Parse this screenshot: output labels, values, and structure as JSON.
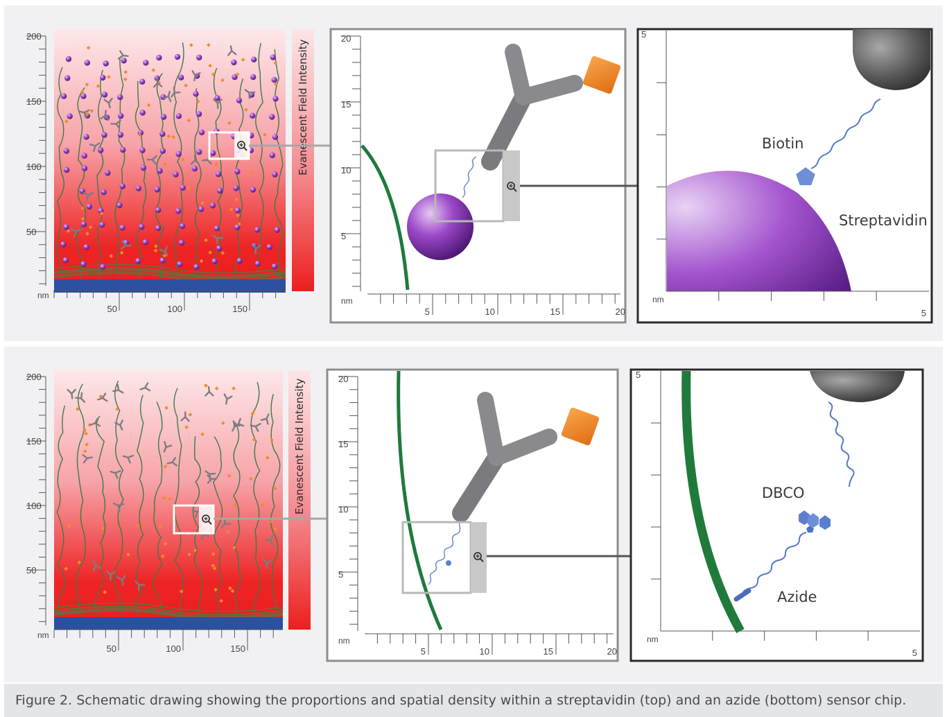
{
  "caption": "Figure 2. Schematic drawing showing the proportions and spatial density within a streptavidin (top) and an azide (bottom) sensor chip.",
  "unit": "nm",
  "intensity_label": "Evanescent Field Intensity",
  "panel_a_y_ticks": [
    "200",
    "150",
    "100",
    "50"
  ],
  "panel_a_x_ticks": [
    "50",
    "100",
    "150"
  ],
  "panel_b_y_ticks": [
    "20",
    "15",
    "10",
    "5"
  ],
  "panel_b_x_ticks": [
    "5",
    "10",
    "15",
    "20"
  ],
  "panel_c_y_tick": "5",
  "panel_c_x_tick": "5",
  "top_labels": {
    "biotin": "Biotin",
    "streptavidin": "Streptavidin"
  },
  "bottom_labels": {
    "dbco": "DBCO",
    "azide": "Azide"
  },
  "colors": {
    "substrate": "#2d4fa0",
    "field_top": "#fde8ea",
    "field_bottom": "#ee2424",
    "polymer": "#2f7a46",
    "streptavidin": "#8a3cb8",
    "antibody": "#8e8e93",
    "antigen": "#f08a2c",
    "linker": "#5578c8",
    "magnifier": "#c8c8c8"
  },
  "icons": [
    "zoom-icon"
  ]
}
